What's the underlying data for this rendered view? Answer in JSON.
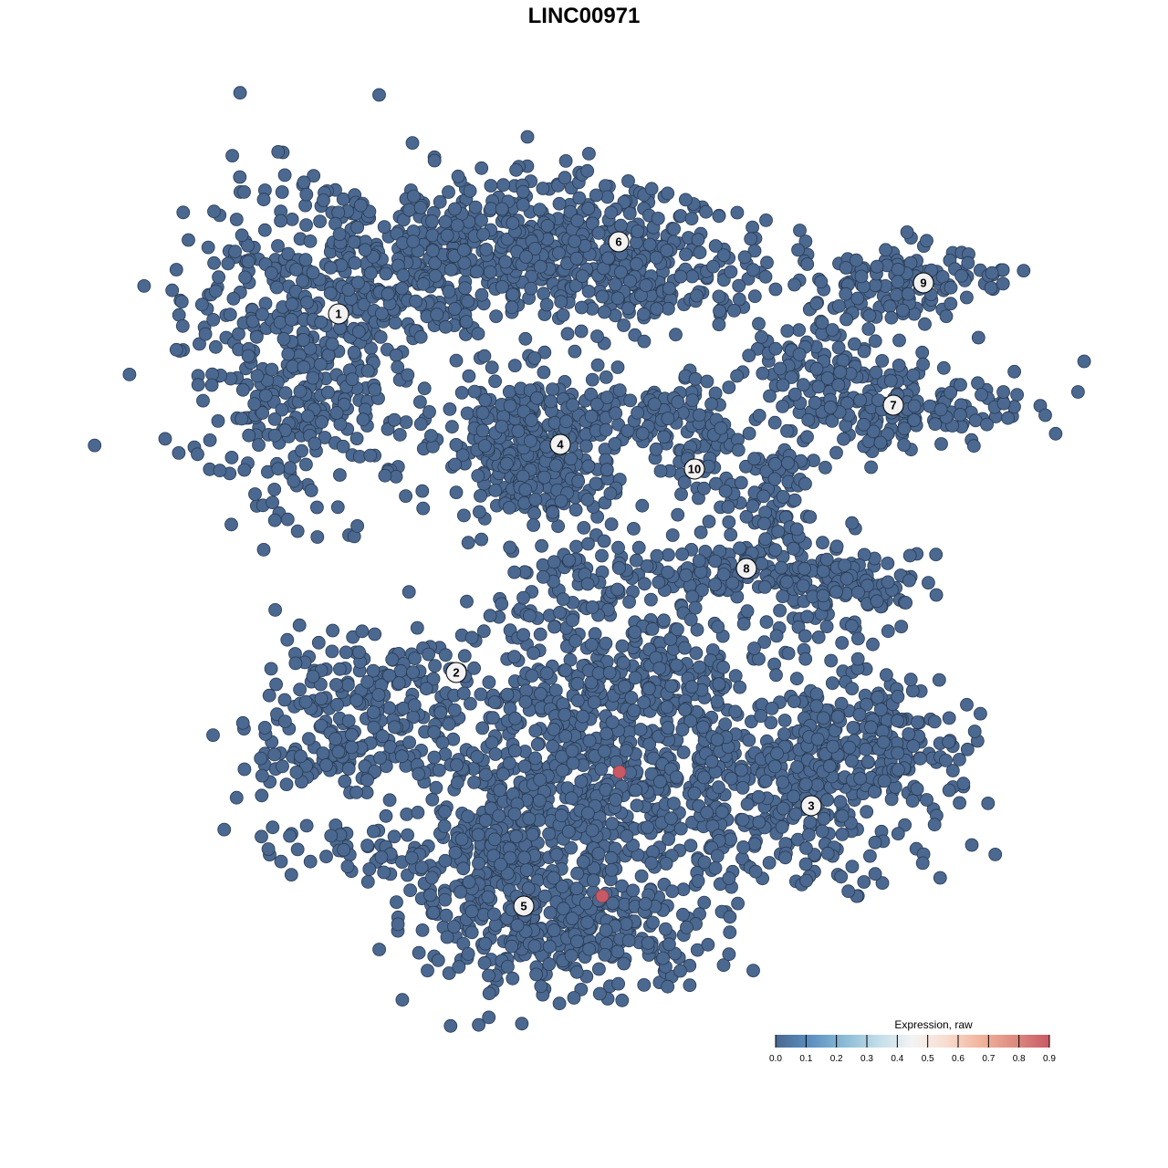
{
  "chart_data": {
    "type": "scatter",
    "title": "LINC00971",
    "xlabel": "",
    "ylabel": "",
    "axes_visible": false,
    "grid": false,
    "cluster_labels": [
      "1",
      "2",
      "3",
      "4",
      "5",
      "6",
      "7",
      "8",
      "9",
      "10"
    ],
    "point_color_low": "#4a6890",
    "point_color_high": "#c85a65",
    "expressing_points": {
      "count": 2,
      "value": 0.9
    },
    "baseline_value": 0.0,
    "legend": {
      "title": "Expression, raw",
      "placement": "bottom-right",
      "ticks": [
        "0.0",
        "0.1",
        "0.2",
        "0.3",
        "0.4",
        "0.5",
        "0.6",
        "0.7",
        "0.8",
        "0.9"
      ],
      "range": [
        0.0,
        0.9
      ],
      "colors": [
        "#4a6890",
        "#5b8ec0",
        "#8bbbd6",
        "#c2dde9",
        "#f4f4f4",
        "#f8dccf",
        "#f1b49b",
        "#de8a80",
        "#c85a65"
      ]
    }
  }
}
